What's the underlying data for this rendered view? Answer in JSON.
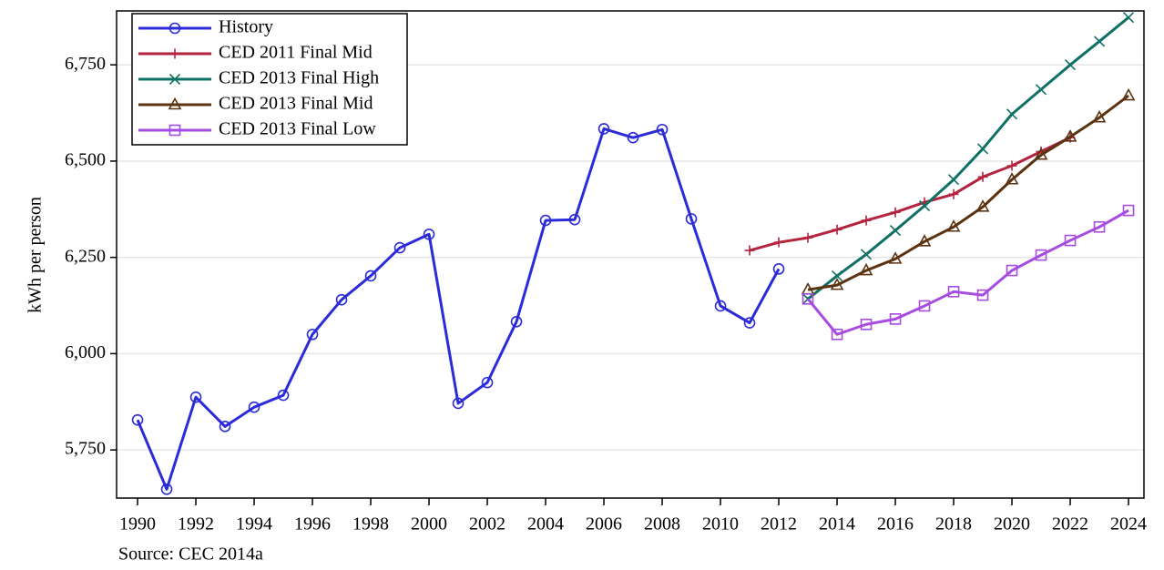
{
  "chart_data": {
    "type": "line",
    "y_label": "kWh per person",
    "source": "Source: CEC 2014a",
    "x": [
      1990,
      1991,
      1992,
      1993,
      1994,
      1995,
      1996,
      1997,
      1998,
      1999,
      2000,
      2001,
      2002,
      2003,
      2004,
      2005,
      2006,
      2007,
      2008,
      2009,
      2010,
      2011,
      2012,
      2013,
      2014,
      2015,
      2016,
      2017,
      2018,
      2019,
      2020,
      2021,
      2022,
      2023,
      2024
    ],
    "series": [
      {
        "name": "History",
        "color": "#2b2bd9",
        "marker": "circle",
        "values": [
          5828,
          5648,
          5887,
          5811,
          5861,
          5892,
          6050,
          6140,
          6202,
          6275,
          6310,
          5871,
          5925,
          6083,
          6346,
          6348,
          6584,
          6561,
          6582,
          6350,
          6124,
          6080,
          6220,
          null,
          null,
          null,
          null,
          null,
          null,
          null,
          null,
          null,
          null,
          null,
          null
        ]
      },
      {
        "name": "CED 2011 Final Mid",
        "color": "#b5233f",
        "marker": "plus",
        "values": [
          null,
          null,
          null,
          null,
          null,
          null,
          null,
          null,
          null,
          null,
          null,
          null,
          null,
          null,
          null,
          null,
          null,
          null,
          null,
          null,
          null,
          6268,
          6289,
          6301,
          6322,
          6346,
          6367,
          6393,
          6414,
          6459,
          6488,
          6525,
          6561,
          null,
          null
        ]
      },
      {
        "name": "CED 2013 Final High",
        "color": "#0f7065",
        "marker": "x",
        "values": [
          null,
          null,
          null,
          null,
          null,
          null,
          null,
          null,
          null,
          null,
          null,
          null,
          null,
          null,
          null,
          null,
          null,
          null,
          null,
          null,
          null,
          null,
          null,
          6142,
          6202,
          6258,
          6320,
          6384,
          6452,
          6532,
          6622,
          6686,
          6750,
          6811,
          6873
        ]
      },
      {
        "name": "CED 2013 Final Mid",
        "color": "#5c3310",
        "marker": "triangle",
        "values": [
          null,
          null,
          null,
          null,
          null,
          null,
          null,
          null,
          null,
          null,
          null,
          null,
          null,
          null,
          null,
          null,
          null,
          null,
          null,
          null,
          null,
          null,
          null,
          6166,
          6178,
          6216,
          6246,
          6291,
          6329,
          6381,
          6452,
          6516,
          6563,
          6613,
          6670
        ]
      },
      {
        "name": "CED 2013 Final Low",
        "color": "#a64ce0",
        "marker": "square",
        "values": [
          null,
          null,
          null,
          null,
          null,
          null,
          null,
          null,
          null,
          null,
          null,
          null,
          null,
          null,
          null,
          null,
          null,
          null,
          null,
          null,
          null,
          null,
          null,
          6142,
          6050,
          6076,
          6090,
          6124,
          6161,
          6152,
          6216,
          6256,
          6294,
          6329,
          6372
        ]
      }
    ],
    "xlim": [
      1989.28,
      2024.53
    ],
    "xticks": [
      1990,
      1992,
      1994,
      1996,
      1998,
      2000,
      2002,
      2004,
      2006,
      2008,
      2010,
      2012,
      2014,
      2016,
      2018,
      2020,
      2022,
      2024
    ],
    "ylim": [
      5625,
      6890
    ],
    "yticks": [
      {
        "value": 5750,
        "label": "5,750"
      },
      {
        "value": 6000,
        "label": "6,000"
      },
      {
        "value": 6250,
        "label": "6,250"
      },
      {
        "value": 6500,
        "label": "6,500"
      },
      {
        "value": 6750,
        "label": "6,750"
      }
    ],
    "grid": true,
    "legend": "upper-left"
  }
}
